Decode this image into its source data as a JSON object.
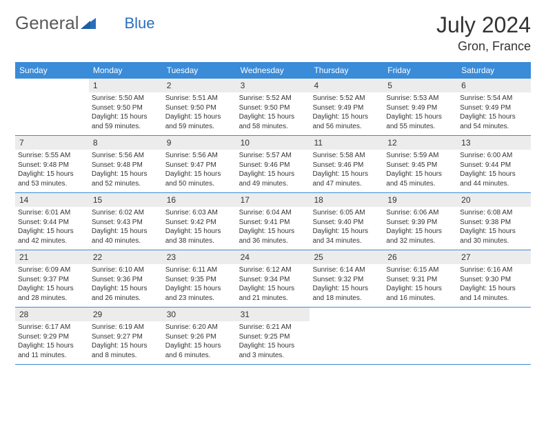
{
  "logo": {
    "text1": "General",
    "text2": "Blue",
    "icon_color": "#2a6ebb"
  },
  "title": "July 2024",
  "location": "Gron, France",
  "header_bg": "#3a8bd8",
  "header_text_color": "#ffffff",
  "daynum_bg": "#ececec",
  "border_color": "#3a8bd8",
  "text_color": "#333333",
  "font_size_body": 10,
  "font_size_header": 12,
  "font_size_title": 32,
  "font_size_location": 18,
  "days": [
    "Sunday",
    "Monday",
    "Tuesday",
    "Wednesday",
    "Thursday",
    "Friday",
    "Saturday"
  ],
  "weeks": [
    [
      null,
      {
        "n": "1",
        "sr": "Sunrise: 5:50 AM",
        "ss": "Sunset: 9:50 PM",
        "d1": "Daylight: 15 hours",
        "d2": "and 59 minutes."
      },
      {
        "n": "2",
        "sr": "Sunrise: 5:51 AM",
        "ss": "Sunset: 9:50 PM",
        "d1": "Daylight: 15 hours",
        "d2": "and 59 minutes."
      },
      {
        "n": "3",
        "sr": "Sunrise: 5:52 AM",
        "ss": "Sunset: 9:50 PM",
        "d1": "Daylight: 15 hours",
        "d2": "and 58 minutes."
      },
      {
        "n": "4",
        "sr": "Sunrise: 5:52 AM",
        "ss": "Sunset: 9:49 PM",
        "d1": "Daylight: 15 hours",
        "d2": "and 56 minutes."
      },
      {
        "n": "5",
        "sr": "Sunrise: 5:53 AM",
        "ss": "Sunset: 9:49 PM",
        "d1": "Daylight: 15 hours",
        "d2": "and 55 minutes."
      },
      {
        "n": "6",
        "sr": "Sunrise: 5:54 AM",
        "ss": "Sunset: 9:49 PM",
        "d1": "Daylight: 15 hours",
        "d2": "and 54 minutes."
      }
    ],
    [
      {
        "n": "7",
        "sr": "Sunrise: 5:55 AM",
        "ss": "Sunset: 9:48 PM",
        "d1": "Daylight: 15 hours",
        "d2": "and 53 minutes."
      },
      {
        "n": "8",
        "sr": "Sunrise: 5:56 AM",
        "ss": "Sunset: 9:48 PM",
        "d1": "Daylight: 15 hours",
        "d2": "and 52 minutes."
      },
      {
        "n": "9",
        "sr": "Sunrise: 5:56 AM",
        "ss": "Sunset: 9:47 PM",
        "d1": "Daylight: 15 hours",
        "d2": "and 50 minutes."
      },
      {
        "n": "10",
        "sr": "Sunrise: 5:57 AM",
        "ss": "Sunset: 9:46 PM",
        "d1": "Daylight: 15 hours",
        "d2": "and 49 minutes."
      },
      {
        "n": "11",
        "sr": "Sunrise: 5:58 AM",
        "ss": "Sunset: 9:46 PM",
        "d1": "Daylight: 15 hours",
        "d2": "and 47 minutes."
      },
      {
        "n": "12",
        "sr": "Sunrise: 5:59 AM",
        "ss": "Sunset: 9:45 PM",
        "d1": "Daylight: 15 hours",
        "d2": "and 45 minutes."
      },
      {
        "n": "13",
        "sr": "Sunrise: 6:00 AM",
        "ss": "Sunset: 9:44 PM",
        "d1": "Daylight: 15 hours",
        "d2": "and 44 minutes."
      }
    ],
    [
      {
        "n": "14",
        "sr": "Sunrise: 6:01 AM",
        "ss": "Sunset: 9:44 PM",
        "d1": "Daylight: 15 hours",
        "d2": "and 42 minutes."
      },
      {
        "n": "15",
        "sr": "Sunrise: 6:02 AM",
        "ss": "Sunset: 9:43 PM",
        "d1": "Daylight: 15 hours",
        "d2": "and 40 minutes."
      },
      {
        "n": "16",
        "sr": "Sunrise: 6:03 AM",
        "ss": "Sunset: 9:42 PM",
        "d1": "Daylight: 15 hours",
        "d2": "and 38 minutes."
      },
      {
        "n": "17",
        "sr": "Sunrise: 6:04 AM",
        "ss": "Sunset: 9:41 PM",
        "d1": "Daylight: 15 hours",
        "d2": "and 36 minutes."
      },
      {
        "n": "18",
        "sr": "Sunrise: 6:05 AM",
        "ss": "Sunset: 9:40 PM",
        "d1": "Daylight: 15 hours",
        "d2": "and 34 minutes."
      },
      {
        "n": "19",
        "sr": "Sunrise: 6:06 AM",
        "ss": "Sunset: 9:39 PM",
        "d1": "Daylight: 15 hours",
        "d2": "and 32 minutes."
      },
      {
        "n": "20",
        "sr": "Sunrise: 6:08 AM",
        "ss": "Sunset: 9:38 PM",
        "d1": "Daylight: 15 hours",
        "d2": "and 30 minutes."
      }
    ],
    [
      {
        "n": "21",
        "sr": "Sunrise: 6:09 AM",
        "ss": "Sunset: 9:37 PM",
        "d1": "Daylight: 15 hours",
        "d2": "and 28 minutes."
      },
      {
        "n": "22",
        "sr": "Sunrise: 6:10 AM",
        "ss": "Sunset: 9:36 PM",
        "d1": "Daylight: 15 hours",
        "d2": "and 26 minutes."
      },
      {
        "n": "23",
        "sr": "Sunrise: 6:11 AM",
        "ss": "Sunset: 9:35 PM",
        "d1": "Daylight: 15 hours",
        "d2": "and 23 minutes."
      },
      {
        "n": "24",
        "sr": "Sunrise: 6:12 AM",
        "ss": "Sunset: 9:34 PM",
        "d1": "Daylight: 15 hours",
        "d2": "and 21 minutes."
      },
      {
        "n": "25",
        "sr": "Sunrise: 6:14 AM",
        "ss": "Sunset: 9:32 PM",
        "d1": "Daylight: 15 hours",
        "d2": "and 18 minutes."
      },
      {
        "n": "26",
        "sr": "Sunrise: 6:15 AM",
        "ss": "Sunset: 9:31 PM",
        "d1": "Daylight: 15 hours",
        "d2": "and 16 minutes."
      },
      {
        "n": "27",
        "sr": "Sunrise: 6:16 AM",
        "ss": "Sunset: 9:30 PM",
        "d1": "Daylight: 15 hours",
        "d2": "and 14 minutes."
      }
    ],
    [
      {
        "n": "28",
        "sr": "Sunrise: 6:17 AM",
        "ss": "Sunset: 9:29 PM",
        "d1": "Daylight: 15 hours",
        "d2": "and 11 minutes."
      },
      {
        "n": "29",
        "sr": "Sunrise: 6:19 AM",
        "ss": "Sunset: 9:27 PM",
        "d1": "Daylight: 15 hours",
        "d2": "and 8 minutes."
      },
      {
        "n": "30",
        "sr": "Sunrise: 6:20 AM",
        "ss": "Sunset: 9:26 PM",
        "d1": "Daylight: 15 hours",
        "d2": "and 6 minutes."
      },
      {
        "n": "31",
        "sr": "Sunrise: 6:21 AM",
        "ss": "Sunset: 9:25 PM",
        "d1": "Daylight: 15 hours",
        "d2": "and 3 minutes."
      },
      null,
      null,
      null
    ]
  ]
}
